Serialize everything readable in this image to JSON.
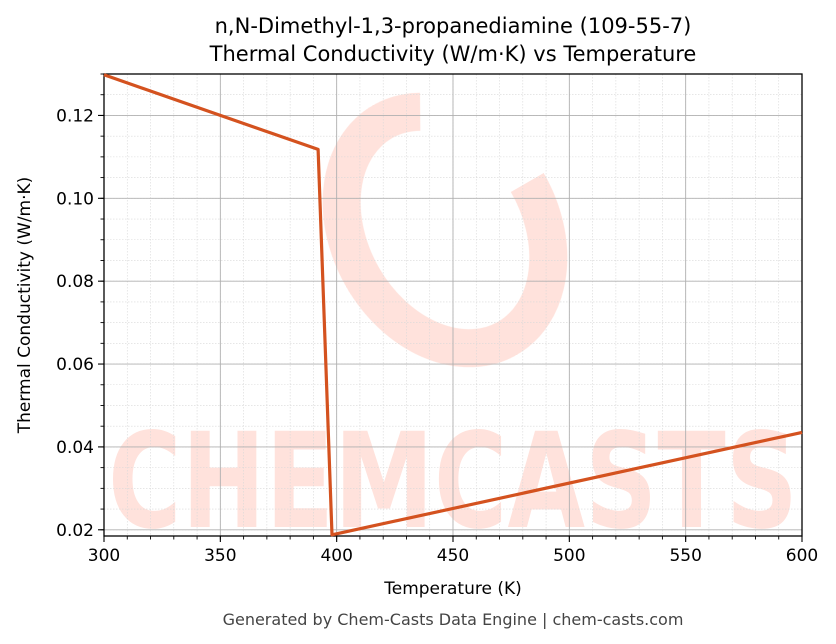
{
  "chart_data": {
    "type": "line",
    "title": "n,N-Dimethyl-1,3-propanediamine (109-55-7)",
    "subtitle": "Thermal Conductivity (W/m·K) vs Temperature",
    "xlabel": "Temperature (K)",
    "ylabel": "Thermal Conductivity (W/m·K)",
    "xlim": [
      300,
      600
    ],
    "ylim": [
      0.0185,
      0.13
    ],
    "x_ticks": [
      "300",
      "350",
      "400",
      "450",
      "500",
      "550",
      "600"
    ],
    "y_ticks": [
      "0.02",
      "0.04",
      "0.06",
      "0.08",
      "0.10",
      "0.12"
    ],
    "grid": true,
    "series": [
      {
        "color": "#d4521f",
        "x": [
          300,
          392,
          398,
          600
        ],
        "y": [
          0.1298,
          0.1118,
          0.0188,
          0.0435
        ]
      }
    ]
  },
  "watermark": {
    "text": "CHEMCASTS",
    "color": "#ffd9d0"
  },
  "footer": "Generated by Chem-Casts Data Engine | chem-casts.com"
}
